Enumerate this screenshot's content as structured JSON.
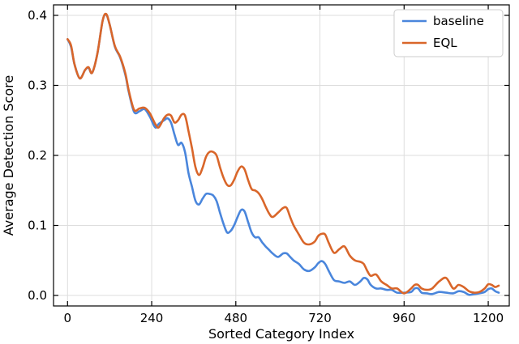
{
  "chart_data": {
    "type": "line",
    "xlabel": "Sorted Category Index",
    "ylabel": "Average Detection Score",
    "xlim": [
      -40,
      1260
    ],
    "ylim": [
      -0.015,
      0.415
    ],
    "xticks": [
      0,
      240,
      480,
      720,
      960,
      1200
    ],
    "yticks": [
      0.0,
      0.1,
      0.2,
      0.3,
      0.4
    ],
    "ytick_labels": [
      "0.0",
      "0.1",
      "0.2",
      "0.3",
      "0.4"
    ],
    "grid": true,
    "legend": {
      "position": "top-right"
    },
    "series": [
      {
        "name": "baseline",
        "color": "#4a86dc",
        "x": [
          0,
          10,
          20,
          35,
          50,
          60,
          70,
          85,
          100,
          110,
          120,
          135,
          150,
          165,
          175,
          190,
          205,
          220,
          235,
          250,
          260,
          275,
          285,
          295,
          305,
          315,
          325,
          335,
          345,
          355,
          365,
          375,
          385,
          395,
          405,
          415,
          425,
          435,
          445,
          455,
          465,
          475,
          485,
          495,
          505,
          515,
          525,
          535,
          545,
          555,
          565,
          575,
          585,
          600,
          615,
          625,
          635,
          645,
          660,
          675,
          690,
          705,
          715,
          725,
          735,
          745,
          760,
          775,
          790,
          805,
          820,
          835,
          845,
          855,
          865,
          880,
          895,
          910,
          925,
          940,
          960,
          980,
          990,
          1000,
          1010,
          1025,
          1040,
          1060,
          1080,
          1100,
          1115,
          1130,
          1145,
          1160,
          1175,
          1190,
          1200,
          1210,
          1220,
          1230
        ],
        "y": [
          0.366,
          0.355,
          0.33,
          0.31,
          0.322,
          0.325,
          0.318,
          0.345,
          0.392,
          0.401,
          0.387,
          0.355,
          0.34,
          0.315,
          0.29,
          0.262,
          0.263,
          0.266,
          0.255,
          0.24,
          0.245,
          0.25,
          0.253,
          0.247,
          0.23,
          0.215,
          0.218,
          0.205,
          0.175,
          0.155,
          0.135,
          0.13,
          0.138,
          0.145,
          0.145,
          0.143,
          0.135,
          0.118,
          0.102,
          0.09,
          0.092,
          0.1,
          0.112,
          0.122,
          0.12,
          0.105,
          0.09,
          0.083,
          0.083,
          0.076,
          0.07,
          0.065,
          0.06,
          0.055,
          0.06,
          0.06,
          0.055,
          0.05,
          0.045,
          0.037,
          0.035,
          0.04,
          0.046,
          0.049,
          0.045,
          0.035,
          0.022,
          0.02,
          0.018,
          0.02,
          0.015,
          0.02,
          0.025,
          0.023,
          0.015,
          0.01,
          0.01,
          0.008,
          0.008,
          0.004,
          0.004,
          0.005,
          0.01,
          0.01,
          0.004,
          0.003,
          0.002,
          0.005,
          0.004,
          0.003,
          0.006,
          0.005,
          0.001,
          0.002,
          0.003,
          0.005,
          0.009,
          0.01,
          0.006,
          0.004
        ]
      },
      {
        "name": "EQL",
        "color": "#d9662a",
        "x": [
          0,
          10,
          20,
          35,
          50,
          60,
          70,
          85,
          100,
          110,
          120,
          135,
          150,
          165,
          175,
          190,
          205,
          220,
          235,
          250,
          260,
          275,
          285,
          295,
          305,
          315,
          325,
          335,
          345,
          355,
          365,
          375,
          385,
          395,
          405,
          415,
          425,
          435,
          445,
          455,
          465,
          475,
          485,
          495,
          505,
          515,
          525,
          535,
          545,
          555,
          565,
          575,
          585,
          600,
          615,
          625,
          635,
          645,
          660,
          675,
          690,
          705,
          715,
          725,
          735,
          745,
          760,
          775,
          790,
          805,
          820,
          835,
          845,
          855,
          865,
          880,
          895,
          910,
          925,
          940,
          960,
          980,
          990,
          1000,
          1010,
          1025,
          1040,
          1060,
          1080,
          1100,
          1115,
          1130,
          1145,
          1160,
          1175,
          1190,
          1200,
          1210,
          1220,
          1230
        ],
        "y": [
          0.366,
          0.357,
          0.33,
          0.31,
          0.322,
          0.326,
          0.318,
          0.345,
          0.392,
          0.402,
          0.387,
          0.356,
          0.341,
          0.317,
          0.292,
          0.265,
          0.267,
          0.268,
          0.26,
          0.245,
          0.24,
          0.253,
          0.258,
          0.257,
          0.247,
          0.25,
          0.258,
          0.257,
          0.235,
          0.21,
          0.183,
          0.172,
          0.182,
          0.198,
          0.205,
          0.205,
          0.2,
          0.183,
          0.168,
          0.158,
          0.157,
          0.165,
          0.177,
          0.184,
          0.18,
          0.165,
          0.152,
          0.15,
          0.146,
          0.138,
          0.127,
          0.117,
          0.112,
          0.118,
          0.125,
          0.125,
          0.112,
          0.1,
          0.087,
          0.075,
          0.073,
          0.077,
          0.085,
          0.088,
          0.087,
          0.075,
          0.061,
          0.066,
          0.07,
          0.057,
          0.05,
          0.048,
          0.045,
          0.035,
          0.028,
          0.03,
          0.02,
          0.015,
          0.01,
          0.01,
          0.003,
          0.01,
          0.015,
          0.015,
          0.01,
          0.008,
          0.01,
          0.02,
          0.025,
          0.01,
          0.015,
          0.012,
          0.006,
          0.004,
          0.005,
          0.01,
          0.016,
          0.015,
          0.012,
          0.014
        ]
      }
    ]
  }
}
